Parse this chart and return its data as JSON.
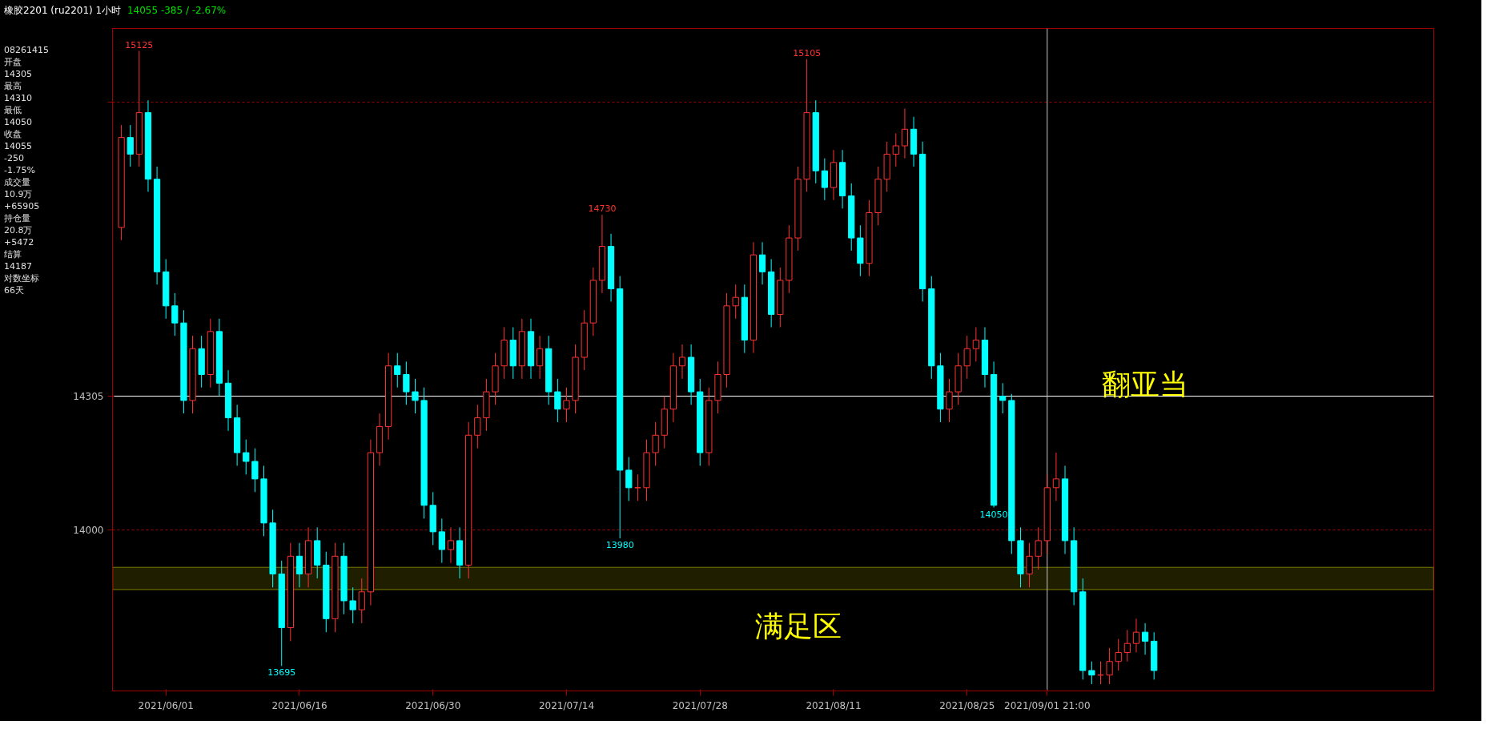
{
  "chart_data": {
    "type": "candlestick",
    "title": "橡胶2201 (ru2201) 1小时",
    "subtitle": "14055  -385 / -2.67%",
    "categories": [
      null,
      null,
      null,
      null,
      null,
      "2021/06/01",
      null,
      null,
      null,
      null,
      null,
      null,
      null,
      null,
      null,
      null,
      null,
      null,
      null,
      null,
      "2021/06/16",
      null,
      null,
      null,
      null,
      null,
      null,
      null,
      null,
      null,
      null,
      null,
      null,
      null,
      null,
      "2021/06/30",
      null,
      null,
      null,
      null,
      null,
      null,
      null,
      null,
      null,
      null,
      null,
      null,
      null,
      null,
      "2021/07/14",
      null,
      null,
      null,
      null,
      null,
      null,
      null,
      null,
      null,
      null,
      null,
      null,
      null,
      null,
      "2021/07/28",
      null,
      null,
      null,
      null,
      null,
      null,
      null,
      null,
      null,
      null,
      null,
      null,
      null,
      null,
      "2021/08/11",
      null,
      null,
      null,
      null,
      null,
      null,
      null,
      null,
      null,
      null,
      null,
      null,
      null,
      null,
      "2021/08/25",
      null,
      null,
      null,
      null,
      null,
      null,
      null,
      null,
      "2021/09/01 21:00",
      null,
      null,
      null,
      null,
      null,
      null,
      null,
      null,
      null,
      null,
      null,
      null
    ],
    "ohlc": [
      [
        14700,
        14945,
        14670,
        14915
      ],
      [
        14915,
        14945,
        14845,
        14875
      ],
      [
        14875,
        15125,
        14845,
        14975
      ],
      [
        14975,
        15005,
        14785,
        14815
      ],
      [
        14815,
        14845,
        14565,
        14595
      ],
      [
        14595,
        14625,
        14485,
        14515
      ],
      [
        14515,
        14545,
        14445,
        14475
      ],
      [
        14475,
        14505,
        14265,
        14295
      ],
      [
        14295,
        14445,
        14265,
        14415
      ],
      [
        14415,
        14445,
        14325,
        14355
      ],
      [
        14355,
        14485,
        14325,
        14455
      ],
      [
        14455,
        14485,
        14305,
        14335
      ],
      [
        14335,
        14365,
        14225,
        14255
      ],
      [
        14255,
        14285,
        14145,
        14175
      ],
      [
        14175,
        14205,
        14125,
        14155
      ],
      [
        14155,
        14185,
        14085,
        14115
      ],
      [
        14115,
        14145,
        13985,
        14015
      ],
      [
        14015,
        14045,
        13870,
        13900
      ],
      [
        13900,
        13930,
        13695,
        13780
      ],
      [
        13780,
        13970,
        13750,
        13940
      ],
      [
        13940,
        13970,
        13870,
        13900
      ],
      [
        13900,
        14005,
        13870,
        13975
      ],
      [
        13975,
        14005,
        13890,
        13920
      ],
      [
        13920,
        13950,
        13770,
        13800
      ],
      [
        13800,
        13970,
        13770,
        13940
      ],
      [
        13940,
        13970,
        13810,
        13840
      ],
      [
        13840,
        13870,
        13790,
        13820
      ],
      [
        13820,
        13890,
        13790,
        13860
      ],
      [
        13860,
        14205,
        13830,
        14175
      ],
      [
        14175,
        14265,
        14145,
        14235
      ],
      [
        14235,
        14405,
        14205,
        14375
      ],
      [
        14375,
        14405,
        14325,
        14355
      ],
      [
        14355,
        14385,
        14285,
        14315
      ],
      [
        14315,
        14345,
        14265,
        14295
      ],
      [
        14295,
        14325,
        14025,
        14055
      ],
      [
        14055,
        14085,
        13965,
        13995
      ],
      [
        13995,
        14025,
        13925,
        13955
      ],
      [
        13955,
        14005,
        13925,
        13975
      ],
      [
        13975,
        14005,
        13890,
        13920
      ],
      [
        13920,
        14245,
        13890,
        14215
      ],
      [
        14215,
        14285,
        14185,
        14255
      ],
      [
        14255,
        14345,
        14225,
        14315
      ],
      [
        14315,
        14405,
        14285,
        14375
      ],
      [
        14375,
        14465,
        14345,
        14435
      ],
      [
        14435,
        14465,
        14345,
        14375
      ],
      [
        14375,
        14485,
        14345,
        14455
      ],
      [
        14455,
        14485,
        14345,
        14375
      ],
      [
        14375,
        14445,
        14345,
        14415
      ],
      [
        14415,
        14445,
        14285,
        14315
      ],
      [
        14315,
        14345,
        14245,
        14275
      ],
      [
        14275,
        14325,
        14245,
        14295
      ],
      [
        14295,
        14425,
        14265,
        14395
      ],
      [
        14395,
        14505,
        14365,
        14475
      ],
      [
        14475,
        14605,
        14445,
        14575
      ],
      [
        14575,
        14730,
        14545,
        14655
      ],
      [
        14655,
        14685,
        14525,
        14555
      ],
      [
        14555,
        14585,
        13980,
        14135
      ],
      [
        14135,
        14165,
        14065,
        14095
      ],
      [
        14095,
        14125,
        14065,
        14095
      ],
      [
        14095,
        14205,
        14065,
        14175
      ],
      [
        14175,
        14245,
        14145,
        14215
      ],
      [
        14215,
        14305,
        14185,
        14275
      ],
      [
        14275,
        14405,
        14245,
        14375
      ],
      [
        14375,
        14425,
        14345,
        14395
      ],
      [
        14395,
        14425,
        14285,
        14315
      ],
      [
        14315,
        14345,
        14145,
        14175
      ],
      [
        14175,
        14325,
        14145,
        14295
      ],
      [
        14295,
        14385,
        14265,
        14355
      ],
      [
        14355,
        14545,
        14325,
        14515
      ],
      [
        14515,
        14565,
        14485,
        14535
      ],
      [
        14535,
        14565,
        14405,
        14435
      ],
      [
        14435,
        14665,
        14405,
        14635
      ],
      [
        14635,
        14665,
        14565,
        14595
      ],
      [
        14595,
        14625,
        14465,
        14495
      ],
      [
        14495,
        14605,
        14465,
        14575
      ],
      [
        14575,
        14705,
        14545,
        14675
      ],
      [
        14675,
        14845,
        14645,
        14815
      ],
      [
        14815,
        15105,
        14785,
        14975
      ],
      [
        14975,
        15005,
        14805,
        14835
      ],
      [
        14835,
        14865,
        14765,
        14795
      ],
      [
        14795,
        14885,
        14765,
        14855
      ],
      [
        14855,
        14885,
        14745,
        14775
      ],
      [
        14775,
        14805,
        14645,
        14675
      ],
      [
        14675,
        14705,
        14585,
        14615
      ],
      [
        14615,
        14765,
        14585,
        14735
      ],
      [
        14735,
        14845,
        14705,
        14815
      ],
      [
        14815,
        14905,
        14785,
        14875
      ],
      [
        14875,
        14925,
        14845,
        14895
      ],
      [
        14895,
        14985,
        14865,
        14935
      ],
      [
        14935,
        14965,
        14845,
        14875
      ],
      [
        14875,
        14905,
        14525,
        14555
      ],
      [
        14555,
        14585,
        14345,
        14375
      ],
      [
        14375,
        14405,
        14245,
        14275
      ],
      [
        14275,
        14345,
        14245,
        14315
      ],
      [
        14315,
        14405,
        14285,
        14375
      ],
      [
        14375,
        14445,
        14345,
        14415
      ],
      [
        14415,
        14465,
        14385,
        14435
      ],
      [
        14435,
        14465,
        14325,
        14355
      ],
      [
        14355,
        14385,
        14050,
        14055
      ],
      [
        14305,
        14335,
        14265,
        14295
      ],
      [
        14295,
        14310,
        13945,
        13975
      ],
      [
        13975,
        14005,
        13870,
        13900
      ],
      [
        13900,
        13970,
        13870,
        13940
      ],
      [
        13940,
        14005,
        13910,
        13975
      ],
      [
        13975,
        14125,
        13945,
        14095
      ],
      [
        14095,
        14175,
        14065,
        14115
      ],
      [
        14115,
        14145,
        13945,
        13975
      ],
      [
        13975,
        14005,
        13830,
        13860
      ],
      [
        13860,
        13890,
        13665,
        13685
      ],
      [
        13685,
        13705,
        13655,
        13675
      ],
      [
        13675,
        13705,
        13655,
        13675
      ],
      [
        13675,
        13735,
        13655,
        13705
      ],
      [
        13705,
        13755,
        13685,
        13725
      ],
      [
        13725,
        13775,
        13705,
        13745
      ],
      [
        13745,
        13800,
        13725,
        13770
      ],
      [
        13770,
        13790,
        13720,
        13750
      ],
      [
        13750,
        13770,
        13665,
        13685
      ]
    ],
    "ylim": [
      13640,
      15180
    ],
    "log": true,
    "yticks": [
      14000,
      14305,
      {
        "value": 15000,
        "label": null
      }
    ],
    "grid": "y",
    "ref_lines": [
      {
        "axis": "y",
        "value": 14305,
        "label": null,
        "color": "#ffffff",
        "line_style": "solid"
      },
      {
        "axis": "x",
        "value": "2021/09/01 21:00",
        "label": null,
        "color": "#c8c8c8",
        "line_style": "solid"
      }
    ],
    "bands": [
      {
        "axis": "y",
        "from": 13865,
        "to": 13915,
        "label": "满足区",
        "color": "#ffff00"
      }
    ],
    "annotations": [
      "08261415",
      "开盘",
      "14305",
      "最高",
      "14310",
      "最低",
      "14050",
      "收盘",
      "14055",
      "-250",
      "-1.75%",
      "成交量",
      "10.9万",
      "+65905",
      "持仓量",
      "20.8万",
      "+5472",
      "结算",
      "14187",
      "对数坐标",
      "66天",
      {
        "text": "15125",
        "y": 15125
      },
      {
        "text": "13695",
        "y": 13695
      },
      {
        "text": "14730",
        "y": 14730
      },
      {
        "text": "13980",
        "y": 13980
      },
      {
        "text": "15105",
        "y": 15105
      },
      {
        "text": "14050",
        "y": 14050
      },
      "翻亚当"
    ]
  }
}
